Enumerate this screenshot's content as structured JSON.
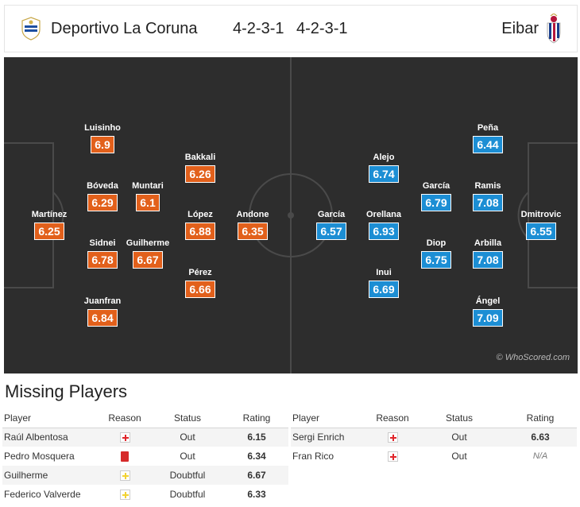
{
  "header": {
    "home_team": "Deportivo La Coruna",
    "away_team": "Eibar",
    "home_formation": "4-2-3-1",
    "away_formation": "4-2-3-1"
  },
  "colors": {
    "home_rating": "#e2601b",
    "away_rating": "#1c8ed4",
    "pitch": "#2d2d2d",
    "missing_rating": "#c3541b"
  },
  "home_players": [
    {
      "name": "Martínez",
      "rating": "6.25"
    },
    {
      "name": "Luisinho",
      "rating": "6.9"
    },
    {
      "name": "Bóveda",
      "rating": "6.29"
    },
    {
      "name": "Sidnei",
      "rating": "6.78"
    },
    {
      "name": "Juanfran",
      "rating": "6.84"
    },
    {
      "name": "Muntari",
      "rating": "6.1"
    },
    {
      "name": "Guilherme",
      "rating": "6.67"
    },
    {
      "name": "Bakkali",
      "rating": "6.26"
    },
    {
      "name": "López",
      "rating": "6.88"
    },
    {
      "name": "Pérez",
      "rating": "6.66"
    },
    {
      "name": "Andone",
      "rating": "6.35"
    }
  ],
  "away_players": [
    {
      "name": "García",
      "rating": "6.57"
    },
    {
      "name": "Alejo",
      "rating": "6.74"
    },
    {
      "name": "Orellana",
      "rating": "6.93"
    },
    {
      "name": "Inui",
      "rating": "6.69"
    },
    {
      "name": "García",
      "rating": "6.79"
    },
    {
      "name": "Diop",
      "rating": "6.75"
    },
    {
      "name": "Peña",
      "rating": "6.44"
    },
    {
      "name": "Ramis",
      "rating": "7.08"
    },
    {
      "name": "Arbilla",
      "rating": "7.08"
    },
    {
      "name": "Ángel",
      "rating": "7.09"
    },
    {
      "name": "Dmitrovic",
      "rating": "6.55"
    }
  ],
  "watermark": "© WhoScored.com",
  "missing": {
    "title": "Missing Players",
    "columns": [
      "Player",
      "Reason",
      "Status",
      "Rating"
    ],
    "home": [
      {
        "player": "Raúl Albentosa",
        "reason_icon": "injury-icon",
        "status": "Out",
        "rating": "6.15"
      },
      {
        "player": "Pedro Mosquera",
        "reason_icon": "red-card-icon",
        "status": "Out",
        "rating": "6.34"
      },
      {
        "player": "Guilherme",
        "reason_icon": "doubtful-icon",
        "status": "Doubtful",
        "rating": "6.67"
      },
      {
        "player": "Federico Valverde",
        "reason_icon": "doubtful-icon",
        "status": "Doubtful",
        "rating": "6.33"
      }
    ],
    "away": [
      {
        "player": "Sergi Enrich",
        "reason_icon": "injury-icon",
        "status": "Out",
        "rating": "6.63"
      },
      {
        "player": "Fran Rico",
        "reason_icon": "injury-icon",
        "status": "Out",
        "rating": "N/A"
      }
    ]
  }
}
